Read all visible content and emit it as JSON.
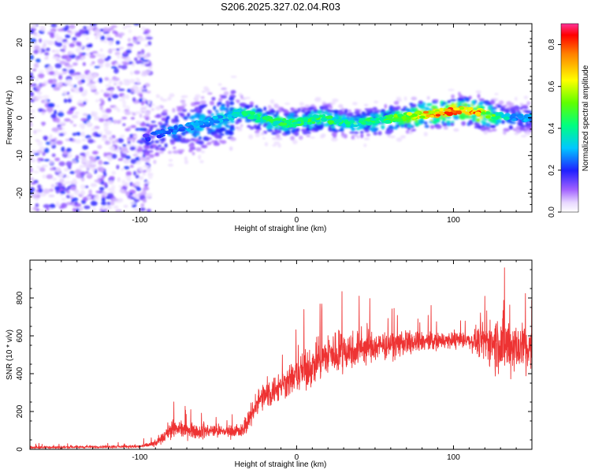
{
  "title": "S206.2025.327.02.04.R03",
  "chart_data": [
    {
      "type": "heatmap",
      "xlabel": "Height of straight line (km)",
      "ylabel": "Frequency (Hz)",
      "xlim": [
        -170,
        150
      ],
      "ylim": [
        -25,
        25
      ],
      "xticks": [
        -100,
        0,
        100
      ],
      "xtick_labels": [
        "-100",
        "0",
        "100"
      ],
      "yticks": [
        -20,
        -10,
        0,
        10,
        20
      ],
      "ytick_labels": [
        "-20",
        "-10",
        "0",
        "10",
        "20"
      ],
      "colorbar": {
        "label": "Normalized spectral amplitude",
        "range": [
          0.0,
          0.9
        ],
        "ticks": [
          0.0,
          0.2,
          0.4,
          0.6,
          0.8
        ],
        "tick_labels": [
          "0.0",
          "0.2",
          "0.4",
          "0.6",
          "0.8"
        ]
      },
      "ridge": {
        "x": [
          -95,
          -85,
          -75,
          -65,
          -55,
          -45,
          -35,
          -25,
          -15,
          -5,
          5,
          15,
          25,
          35,
          45,
          55,
          65,
          75,
          85,
          95,
          105,
          115,
          125,
          135,
          145
        ],
        "freq": [
          -5,
          -4,
          -3,
          -2,
          -1,
          0,
          1.5,
          0,
          -1,
          -1.5,
          -1,
          0,
          -1,
          -1.5,
          -1,
          -0.5,
          0,
          0.5,
          1,
          1.5,
          2,
          1.5,
          0.5,
          0,
          0
        ],
        "amplitude": [
          0.25,
          0.3,
          0.3,
          0.35,
          0.35,
          0.4,
          0.45,
          0.5,
          0.5,
          0.55,
          0.5,
          0.55,
          0.5,
          0.45,
          0.5,
          0.55,
          0.6,
          0.7,
          0.85,
          0.9,
          0.85,
          0.9,
          0.6,
          0.4,
          0.35
        ]
      }
    },
    {
      "type": "line",
      "xlabel": "Height of straight line (km)",
      "ylabel": "SNR (10 * v/v)",
      "xlim": [
        -170,
        150
      ],
      "ylim": [
        0,
        1000
      ],
      "xticks": [
        -100,
        0,
        100
      ],
      "xtick_labels": [
        "-100",
        "0",
        "100"
      ],
      "yticks": [
        0,
        200,
        400,
        600,
        800
      ],
      "ytick_labels": [
        "0",
        "200",
        "400",
        "600",
        "800"
      ],
      "color": "#ee3333",
      "envelope": {
        "x": [
          -170,
          -100,
          -90,
          -85,
          -80,
          -70,
          -60,
          -50,
          -40,
          -35,
          -30,
          -25,
          -20,
          -10,
          0,
          10,
          20,
          30,
          40,
          50,
          60,
          70,
          80,
          90,
          100,
          110,
          120,
          130,
          140,
          150
        ],
        "y": [
          10,
          15,
          30,
          60,
          110,
          100,
          95,
          95,
          95,
          95,
          160,
          250,
          280,
          340,
          390,
          440,
          500,
          520,
          530,
          540,
          550,
          560,
          570,
          575,
          575,
          575,
          570,
          560,
          540,
          520
        ],
        "spread": [
          10,
          10,
          25,
          40,
          70,
          60,
          55,
          50,
          50,
          50,
          80,
          100,
          110,
          120,
          130,
          150,
          170,
          160,
          140,
          120,
          100,
          90,
          80,
          70,
          60,
          60,
          150,
          250,
          220,
          180
        ]
      }
    }
  ]
}
